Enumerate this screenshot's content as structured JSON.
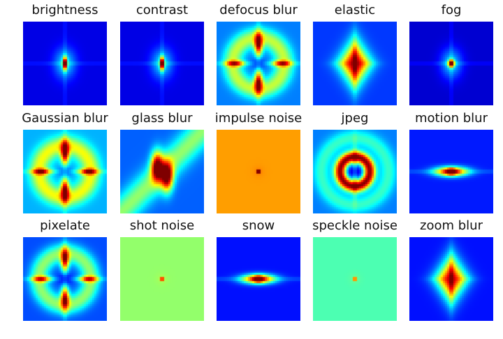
{
  "colormap": "jet",
  "panels": [
    {
      "title": "brightness",
      "pattern": "cross",
      "bg": 0.1,
      "peak_orientation": "vertical"
    },
    {
      "title": "contrast",
      "pattern": "cross",
      "bg": 0.1,
      "peak_orientation": "vertical"
    },
    {
      "title": "defocus blur",
      "pattern": "rings",
      "bg": 0.25
    },
    {
      "title": "elastic",
      "pattern": "diamond",
      "bg": 0.18
    },
    {
      "title": "fog",
      "pattern": "cross",
      "bg": 0.08,
      "peak_orientation": "round"
    },
    {
      "title": "Gaussian blur",
      "pattern": "rings",
      "bg": 0.3
    },
    {
      "title": "glass blur",
      "pattern": "twist",
      "bg": 0.22
    },
    {
      "title": "impulse noise",
      "pattern": "flat",
      "bg": 0.72
    },
    {
      "title": "jpeg",
      "pattern": "ringcenter",
      "bg": 0.25
    },
    {
      "title": "motion blur",
      "pattern": "hblob",
      "bg": 0.15
    },
    {
      "title": "pixelate",
      "pattern": "rings",
      "bg": 0.2
    },
    {
      "title": "shot noise",
      "pattern": "flat",
      "bg": 0.52
    },
    {
      "title": "snow",
      "pattern": "hblob",
      "bg": 0.14
    },
    {
      "title": "speckle noise",
      "pattern": "flat",
      "bg": 0.45
    },
    {
      "title": "zoom blur",
      "pattern": "diamond",
      "bg": 0.14
    }
  ]
}
